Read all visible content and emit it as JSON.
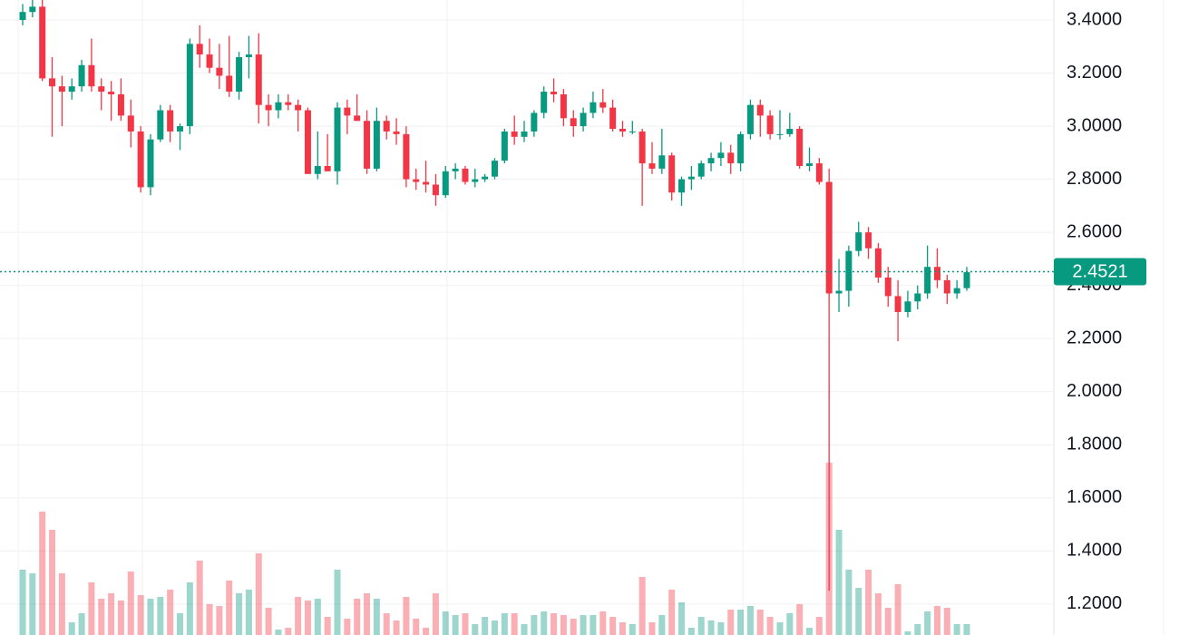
{
  "chart_data": {
    "type": "candlestick",
    "up_color": "#089981",
    "down_color": "#f23645",
    "ylim": [
      1.0836,
      3.4752
    ],
    "yticks": [
      {
        "value": 1.2,
        "label": "1.2000"
      },
      {
        "value": 1.4,
        "label": "1.4000"
      },
      {
        "value": 1.6,
        "label": "1.6000"
      },
      {
        "value": 1.8,
        "label": "1.8000"
      },
      {
        "value": 2.0,
        "label": "2.0000"
      },
      {
        "value": 2.2,
        "label": "2.2000"
      },
      {
        "value": 2.4,
        "label": "2.4000"
      },
      {
        "value": 2.6,
        "label": "2.6000"
      },
      {
        "value": 2.8,
        "label": "2.8000"
      },
      {
        "value": 3.0,
        "label": "3.0000"
      },
      {
        "value": 3.2,
        "label": "3.2000"
      },
      {
        "value": 3.4,
        "label": "3.4000"
      }
    ],
    "grid": true,
    "last_price": 2.4521,
    "vlim": [
      0,
      100
    ],
    "candles": [
      [
        3.4,
        3.46,
        3.38,
        3.43
      ],
      [
        3.43,
        3.48,
        3.41,
        3.45
      ],
      [
        3.45,
        3.48,
        3.17,
        3.18
      ],
      [
        3.18,
        3.26,
        2.96,
        3.15
      ],
      [
        3.15,
        3.19,
        3.0,
        3.13
      ],
      [
        3.13,
        3.18,
        3.1,
        3.15
      ],
      [
        3.15,
        3.25,
        3.13,
        3.23
      ],
      [
        3.23,
        3.33,
        3.13,
        3.15
      ],
      [
        3.15,
        3.18,
        3.06,
        3.13
      ],
      [
        3.13,
        3.17,
        3.02,
        3.12
      ],
      [
        3.12,
        3.18,
        3.02,
        3.04
      ],
      [
        3.04,
        3.1,
        2.92,
        2.98
      ],
      [
        2.98,
        3.0,
        2.75,
        2.77
      ],
      [
        2.77,
        2.97,
        2.74,
        2.95
      ],
      [
        2.95,
        3.08,
        2.94,
        3.06
      ],
      [
        3.06,
        3.08,
        2.94,
        2.98
      ],
      [
        2.98,
        3.01,
        2.91,
        3.0
      ],
      [
        3.0,
        3.33,
        2.97,
        3.31
      ],
      [
        3.31,
        3.38,
        3.22,
        3.27
      ],
      [
        3.27,
        3.33,
        3.2,
        3.22
      ],
      [
        3.22,
        3.31,
        3.14,
        3.19
      ],
      [
        3.19,
        3.34,
        3.11,
        3.13
      ],
      [
        3.13,
        3.28,
        3.1,
        3.26
      ],
      [
        3.26,
        3.34,
        3.18,
        3.27
      ],
      [
        3.27,
        3.35,
        3.01,
        3.08
      ],
      [
        3.08,
        3.12,
        3.0,
        3.06
      ],
      [
        3.06,
        3.12,
        3.03,
        3.09
      ],
      [
        3.09,
        3.12,
        3.06,
        3.08
      ],
      [
        3.08,
        3.1,
        2.98,
        3.06
      ],
      [
        3.06,
        3.07,
        2.82,
        2.82
      ],
      [
        2.82,
        2.98,
        2.8,
        2.85
      ],
      [
        2.85,
        2.97,
        2.83,
        2.83
      ],
      [
        2.83,
        3.09,
        2.78,
        3.07
      ],
      [
        3.07,
        3.1,
        2.97,
        3.04
      ],
      [
        3.04,
        3.12,
        3.02,
        3.02
      ],
      [
        3.02,
        3.06,
        2.82,
        2.84
      ],
      [
        2.84,
        3.07,
        2.83,
        3.02
      ],
      [
        3.02,
        3.04,
        2.95,
        2.98
      ],
      [
        2.98,
        3.03,
        2.93,
        2.97
      ],
      [
        2.97,
        3.0,
        2.77,
        2.8
      ],
      [
        2.8,
        2.84,
        2.76,
        2.79
      ],
      [
        2.79,
        2.87,
        2.75,
        2.78
      ],
      [
        2.78,
        2.82,
        2.7,
        2.74
      ],
      [
        2.74,
        2.85,
        2.73,
        2.83
      ],
      [
        2.83,
        2.86,
        2.8,
        2.84
      ],
      [
        2.84,
        2.85,
        2.78,
        2.79
      ],
      [
        2.79,
        2.84,
        2.77,
        2.8
      ],
      [
        2.8,
        2.82,
        2.79,
        2.81
      ],
      [
        2.81,
        2.88,
        2.8,
        2.87
      ],
      [
        2.87,
        2.99,
        2.86,
        2.98
      ],
      [
        2.98,
        3.04,
        2.93,
        2.96
      ],
      [
        2.96,
        3.02,
        2.94,
        2.98
      ],
      [
        2.98,
        3.06,
        2.96,
        3.05
      ],
      [
        3.05,
        3.15,
        3.03,
        3.13
      ],
      [
        3.13,
        3.18,
        3.09,
        3.12
      ],
      [
        3.12,
        3.14,
        3.0,
        3.03
      ],
      [
        3.03,
        3.06,
        2.96,
        3.0
      ],
      [
        3.0,
        3.07,
        2.98,
        3.05
      ],
      [
        3.05,
        3.13,
        3.03,
        3.09
      ],
      [
        3.09,
        3.14,
        3.05,
        3.07
      ],
      [
        3.07,
        3.1,
        2.98,
        2.99
      ],
      [
        2.99,
        3.02,
        2.96,
        2.98
      ],
      [
        2.98,
        3.02,
        2.97,
        2.98
      ],
      [
        2.98,
        2.99,
        2.7,
        2.86
      ],
      [
        2.86,
        2.94,
        2.82,
        2.84
      ],
      [
        2.84,
        2.99,
        2.82,
        2.89
      ],
      [
        2.89,
        2.9,
        2.72,
        2.75
      ],
      [
        2.75,
        2.81,
        2.7,
        2.8
      ],
      [
        2.8,
        2.85,
        2.76,
        2.81
      ],
      [
        2.81,
        2.87,
        2.8,
        2.86
      ],
      [
        2.86,
        2.9,
        2.83,
        2.88
      ],
      [
        2.88,
        2.94,
        2.85,
        2.9
      ],
      [
        2.9,
        2.93,
        2.82,
        2.86
      ],
      [
        2.86,
        2.98,
        2.83,
        2.97
      ],
      [
        2.97,
        3.1,
        2.95,
        3.08
      ],
      [
        3.08,
        3.1,
        2.96,
        3.04
      ],
      [
        3.04,
        3.06,
        2.95,
        2.97
      ],
      [
        2.97,
        3.06,
        2.95,
        2.97
      ],
      [
        2.97,
        3.05,
        2.96,
        2.99
      ],
      [
        2.99,
        3.0,
        2.84,
        2.85
      ],
      [
        2.85,
        2.92,
        2.83,
        2.86
      ],
      [
        2.86,
        2.88,
        2.78,
        2.79
      ],
      [
        2.79,
        2.84,
        1.25,
        2.37
      ],
      [
        2.37,
        2.5,
        2.3,
        2.38
      ],
      [
        2.38,
        2.55,
        2.32,
        2.53
      ],
      [
        2.53,
        2.64,
        2.51,
        2.6
      ],
      [
        2.6,
        2.62,
        2.5,
        2.54
      ],
      [
        2.54,
        2.56,
        2.41,
        2.43
      ],
      [
        2.43,
        2.47,
        2.32,
        2.36
      ],
      [
        2.36,
        2.42,
        2.19,
        2.3
      ],
      [
        2.3,
        2.38,
        2.28,
        2.34
      ],
      [
        2.34,
        2.4,
        2.31,
        2.37
      ],
      [
        2.37,
        2.55,
        2.35,
        2.47
      ],
      [
        2.47,
        2.54,
        2.39,
        2.42
      ],
      [
        2.42,
        2.44,
        2.33,
        2.37
      ],
      [
        2.37,
        2.42,
        2.35,
        2.39
      ],
      [
        2.39,
        2.47,
        2.38,
        2.45
      ]
    ],
    "volumes": [
      36,
      34,
      68,
      58,
      34,
      7,
      12,
      29,
      20,
      23,
      19,
      35,
      22,
      20,
      21,
      25,
      12,
      29,
      41,
      17,
      16,
      30,
      23,
      25,
      45,
      15,
      3,
      4,
      21,
      19,
      20,
      10,
      36,
      9,
      20,
      23,
      20,
      12,
      8,
      21,
      9,
      4,
      23,
      13,
      11,
      12,
      6,
      10,
      8,
      12,
      12,
      6,
      11,
      13,
      12,
      11,
      9,
      11,
      11,
      13,
      10,
      7,
      6,
      32,
      7,
      11,
      25,
      18,
      4,
      10,
      8,
      7,
      14,
      14,
      16,
      14,
      10,
      7,
      12,
      17,
      4,
      10,
      95,
      58,
      36,
      26,
      36,
      23,
      15,
      28,
      2,
      6,
      13,
      16,
      15,
      6,
      6
    ]
  }
}
